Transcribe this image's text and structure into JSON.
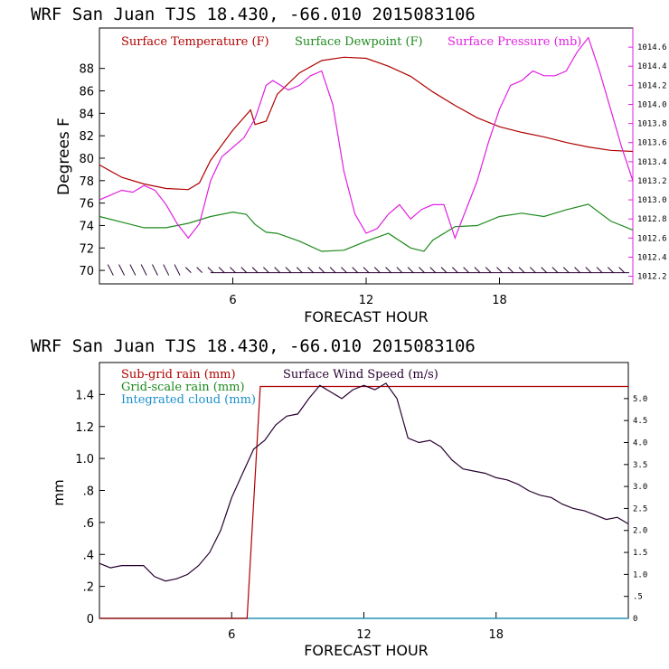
{
  "colors": {
    "temperature": "#b00000",
    "dewpoint": "#1e8a1e",
    "pressure": "#e020e0",
    "wind": "#280030",
    "subgrid_rain": "#b00000",
    "gridscale_rain": "#1e8a1e",
    "cloud": "#1a90c8"
  },
  "chart_data": [
    {
      "type": "line",
      "title": "WRF   San Juan TJS  18.430, -66.010  2015083106",
      "xlabel": "FORECAST HOUR",
      "ylabel": "Degrees F",
      "xlim": [
        0,
        24
      ],
      "ylim": [
        68.8,
        91.6
      ],
      "y2lim": [
        1012.12,
        1014.8
      ],
      "xticks": [
        "6",
        "12",
        "18"
      ],
      "yticks": [
        "70",
        "72",
        "74",
        "76",
        "78",
        "80",
        "82",
        "84",
        "86",
        "88"
      ],
      "y2ticks": [
        "1012.2",
        "1012.4",
        "1012.6",
        "1012.8",
        "1013.0",
        "1013.2",
        "1013.4",
        "1013.6",
        "1013.8",
        "1014.0",
        "1014.2",
        "1014.4",
        "1014.6"
      ],
      "series": [
        {
          "name": "Surface Temperature (F)",
          "axis": "left",
          "x": [
            0,
            1,
            2,
            3,
            4,
            4.5,
            5,
            6,
            6.8,
            7,
            7.5,
            8,
            9,
            10,
            11,
            12,
            13,
            14,
            15,
            16,
            17,
            18,
            19,
            20,
            21,
            22,
            23,
            24
          ],
          "y": [
            79.4,
            78.3,
            77.7,
            77.3,
            77.2,
            77.8,
            79.8,
            82.5,
            84.3,
            83,
            83.3,
            85.7,
            87.6,
            88.7,
            89,
            88.9,
            88.2,
            87.3,
            85.9,
            84.7,
            83.6,
            82.8,
            82.3,
            81.9,
            81.4,
            81,
            80.7,
            80.6
          ]
        },
        {
          "name": "Surface Dewpoint (F)",
          "axis": "left",
          "x": [
            0,
            1,
            2,
            3,
            4,
            5,
            6,
            6.6,
            7,
            7.5,
            8,
            9,
            10,
            11,
            12,
            13,
            14,
            14.6,
            15,
            16,
            17,
            18,
            19,
            20,
            21,
            22,
            23,
            24
          ],
          "y": [
            74.8,
            74.3,
            73.8,
            73.8,
            74.2,
            74.8,
            75.2,
            75,
            74.1,
            73.4,
            73.3,
            72.6,
            71.7,
            71.8,
            72.6,
            73.3,
            72,
            71.7,
            72.7,
            73.9,
            74,
            74.8,
            75.1,
            74.8,
            75.4,
            75.9,
            74.4,
            73.6
          ]
        },
        {
          "name": "Surface Pressure (mb)",
          "axis": "right",
          "x": [
            0,
            0.5,
            1,
            1.5,
            2,
            2.5,
            3,
            3.5,
            4,
            4.5,
            5,
            5.5,
            6,
            6.5,
            7,
            7.5,
            7.8,
            8.5,
            9,
            9.5,
            10,
            10.5,
            11,
            11.5,
            12,
            12.5,
            13,
            13.5,
            14,
            14.5,
            15,
            15.5,
            16,
            16.5,
            17,
            17.5,
            18,
            18.5,
            19,
            19.5,
            20,
            20.5,
            21,
            21.5,
            22,
            22.5,
            23,
            23.5,
            24
          ],
          "y": [
            1013.0,
            1013.05,
            1013.1,
            1013.08,
            1013.15,
            1013.1,
            1012.95,
            1012.75,
            1012.6,
            1012.75,
            1013.2,
            1013.45,
            1013.55,
            1013.65,
            1013.85,
            1014.2,
            1014.25,
            1014.15,
            1014.2,
            1014.3,
            1014.35,
            1014.0,
            1013.3,
            1012.85,
            1012.65,
            1012.7,
            1012.85,
            1012.95,
            1012.8,
            1012.9,
            1012.95,
            1012.95,
            1012.6,
            1012.9,
            1013.2,
            1013.6,
            1013.95,
            1014.2,
            1014.25,
            1014.35,
            1014.3,
            1014.3,
            1014.35,
            1014.55,
            1014.7,
            1014.35,
            1013.95,
            1013.55,
            1013.2
          ]
        }
      ],
      "wind_barbs": true,
      "legend": "top-left"
    },
    {
      "type": "line",
      "title": "WRF   San Juan TJS  18.430, -66.010  2015083106",
      "xlabel": "FORECAST HOUR",
      "ylabel": "mm",
      "xlim": [
        0,
        24
      ],
      "ylim": [
        0,
        1.6
      ],
      "y2lim": [
        0,
        5.82
      ],
      "xticks": [
        "6",
        "12",
        "18"
      ],
      "yticks": [
        "0",
        ".2",
        ".4",
        ".6",
        ".8",
        "1.0",
        "1.2",
        "1.4"
      ],
      "y2ticks": [
        "0",
        ".5",
        "1.0",
        "1.5",
        "2.0",
        "2.5",
        "3.0",
        "3.5",
        "4.0",
        "4.5",
        "5.0"
      ],
      "series": [
        {
          "name": "Sub-grid rain (mm)",
          "axis": "left",
          "x": [
            0,
            6.7,
            7.3,
            24
          ],
          "y": [
            0,
            0,
            1.45,
            1.45
          ]
        },
        {
          "name": "Grid-scale rain (mm)",
          "axis": "left",
          "x": [
            0,
            24
          ],
          "y": [
            0,
            0
          ]
        },
        {
          "name": "Integrated cloud (mm)",
          "axis": "left",
          "x": [
            0,
            24
          ],
          "y": [
            0,
            0
          ]
        },
        {
          "name": "Surface Wind Speed (m/s)",
          "axis": "right",
          "x": [
            0,
            0.5,
            1,
            1.5,
            2,
            2.5,
            3,
            3.5,
            4,
            4.5,
            5,
            5.5,
            6,
            6.5,
            7,
            7.5,
            8,
            8.5,
            9,
            9.5,
            10,
            10.5,
            11,
            11.5,
            12,
            12.5,
            13,
            13.5,
            14,
            14.5,
            15,
            15.5,
            16,
            16.5,
            17,
            17.5,
            18,
            18.5,
            19,
            19.5,
            20,
            20.5,
            21,
            21.5,
            22,
            22.5,
            23,
            23.5,
            24
          ],
          "y": [
            1.25,
            1.15,
            1.2,
            1.2,
            1.2,
            0.95,
            0.85,
            0.9,
            1.0,
            1.2,
            1.5,
            2.0,
            2.75,
            3.3,
            3.85,
            4.05,
            4.4,
            4.6,
            4.65,
            5.0,
            5.3,
            5.15,
            5.0,
            5.2,
            5.3,
            5.2,
            5.35,
            5.0,
            4.1,
            4.0,
            4.05,
            3.9,
            3.6,
            3.4,
            3.35,
            3.3,
            3.2,
            3.15,
            3.05,
            2.9,
            2.8,
            2.75,
            2.6,
            2.5,
            2.45,
            2.35,
            2.25,
            2.3,
            2.15
          ]
        }
      ],
      "legend": "top-left"
    }
  ]
}
